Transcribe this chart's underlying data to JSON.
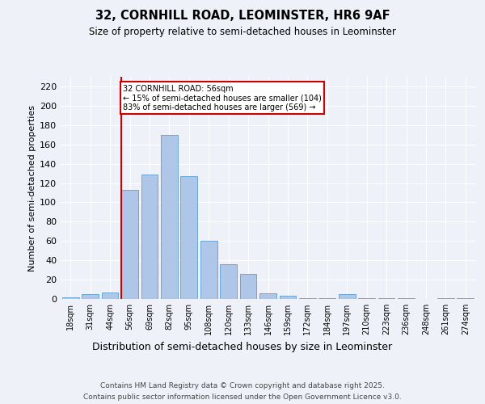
{
  "title1": "32, CORNHILL ROAD, LEOMINSTER, HR6 9AF",
  "title2": "Size of property relative to semi-detached houses in Leominster",
  "xlabel": "Distribution of semi-detached houses by size in Leominster",
  "ylabel": "Number of semi-detached properties",
  "categories": [
    "18sqm",
    "31sqm",
    "44sqm",
    "56sqm",
    "69sqm",
    "82sqm",
    "95sqm",
    "108sqm",
    "120sqm",
    "133sqm",
    "146sqm",
    "159sqm",
    "172sqm",
    "184sqm",
    "197sqm",
    "210sqm",
    "223sqm",
    "236sqm",
    "248sqm",
    "261sqm",
    "274sqm"
  ],
  "values": [
    2,
    5,
    7,
    113,
    129,
    170,
    127,
    60,
    36,
    26,
    6,
    3,
    1,
    1,
    5,
    1,
    1,
    1,
    0,
    1,
    1
  ],
  "bar_color": "#aec6e8",
  "bar_edge_color": "#5a9fd4",
  "highlight_bar_index": 3,
  "vline_color": "#cc0000",
  "annotation_text": "32 CORNHILL ROAD: 56sqm\n← 15% of semi-detached houses are smaller (104)\n83% of semi-detached houses are larger (569) →",
  "annotation_box_color": "#cc0000",
  "ylim": [
    0,
    230
  ],
  "yticks": [
    0,
    20,
    40,
    60,
    80,
    100,
    120,
    140,
    160,
    180,
    200,
    220
  ],
  "footer1": "Contains HM Land Registry data © Crown copyright and database right 2025.",
  "footer2": "Contains public sector information licensed under the Open Government Licence v3.0.",
  "bg_color": "#eef2f8",
  "plot_bg_color": "#eef2f8"
}
